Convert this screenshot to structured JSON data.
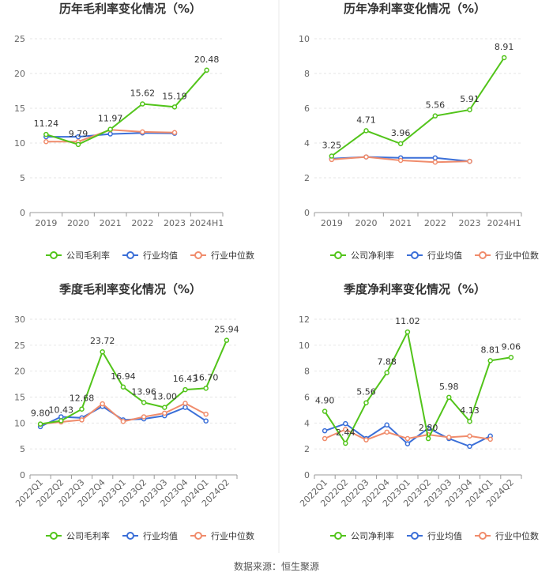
{
  "source_text": "数据来源：恒生聚源",
  "colors": {
    "company": "#52c41a",
    "avg": "#3b6fd8",
    "median": "#f08c6c",
    "axis": "#999999",
    "grid": "#e6e6e6",
    "text": "#666666",
    "title": "#333333",
    "divider": "#e8e8e8"
  },
  "chart_data": [
    {
      "type": "line",
      "title": "历年毛利率变化情况（%）",
      "categories": [
        "2019",
        "2020",
        "2021",
        "2022",
        "2023",
        "2024H1"
      ],
      "ylim": [
        0,
        25
      ],
      "yticks": [
        0,
        5,
        10,
        15,
        20,
        25
      ],
      "rotate_labels": false,
      "series": [
        {
          "name": "公司毛利率",
          "key": "company",
          "values": [
            11.24,
            9.79,
            11.97,
            15.62,
            15.19,
            20.48
          ],
          "labels": [
            "11.24",
            "9.79",
            "11.97",
            "15.62",
            "15.19",
            "20.48"
          ]
        },
        {
          "name": "行业均值",
          "key": "avg",
          "values": [
            10.9,
            10.9,
            11.3,
            11.45,
            11.4,
            null
          ]
        },
        {
          "name": "行业中位数",
          "key": "median",
          "values": [
            10.2,
            10.2,
            11.9,
            11.6,
            11.5,
            null
          ]
        }
      ]
    },
    {
      "type": "line",
      "title": "历年净利率变化情况（%）",
      "categories": [
        "2019",
        "2020",
        "2021",
        "2022",
        "2023",
        "2024H1"
      ],
      "ylim": [
        0,
        10
      ],
      "yticks": [
        0,
        2,
        4,
        6,
        8,
        10
      ],
      "rotate_labels": false,
      "series": [
        {
          "name": "公司净利率",
          "key": "company",
          "values": [
            3.25,
            4.71,
            3.96,
            5.56,
            5.91,
            8.91
          ],
          "labels": [
            "3.25",
            "4.71",
            "3.96",
            "5.56",
            "5.91",
            "8.91"
          ]
        },
        {
          "name": "行业均值",
          "key": "avg",
          "values": [
            3.1,
            3.2,
            3.15,
            3.15,
            2.95,
            null
          ]
        },
        {
          "name": "行业中位数",
          "key": "median",
          "values": [
            3.05,
            3.2,
            3.0,
            2.9,
            2.95,
            null
          ]
        }
      ]
    },
    {
      "type": "line",
      "title": "季度毛利率变化情况（%）",
      "categories": [
        "2022Q1",
        "2022Q2",
        "2022Q3",
        "2022Q4",
        "2023Q1",
        "2023Q2",
        "2023Q3",
        "2023Q4",
        "2024Q1",
        "2024Q2"
      ],
      "ylim": [
        0,
        30
      ],
      "yticks": [
        0,
        5,
        10,
        15,
        20,
        25,
        30
      ],
      "rotate_labels": true,
      "series": [
        {
          "name": "公司毛利率",
          "key": "company",
          "values": [
            9.8,
            10.43,
            12.68,
            23.72,
            16.94,
            13.96,
            13.0,
            16.43,
            16.7,
            25.94
          ],
          "labels": [
            "9.80",
            "10.43",
            "12.68",
            "23.72",
            "16.94",
            "13.96",
            "13.00",
            "16.43",
            "16.70",
            "25.94"
          ]
        },
        {
          "name": "行业均值",
          "key": "avg",
          "values": [
            9.3,
            11.2,
            11.0,
            13.2,
            10.6,
            10.8,
            11.4,
            13.0,
            10.4,
            null
          ]
        },
        {
          "name": "行业中位数",
          "key": "median",
          "values": [
            9.8,
            10.2,
            10.6,
            13.7,
            10.3,
            11.2,
            11.9,
            13.8,
            11.7,
            null
          ]
        }
      ]
    },
    {
      "type": "line",
      "title": "季度净利率变化情况（%）",
      "categories": [
        "2022Q1",
        "2022Q2",
        "2022Q3",
        "2022Q4",
        "2023Q1",
        "2023Q2",
        "2023Q3",
        "2023Q4",
        "2024Q1",
        "2024Q2"
      ],
      "ylim": [
        0,
        12
      ],
      "yticks": [
        0,
        2,
        4,
        6,
        8,
        10,
        12
      ],
      "rotate_labels": true,
      "series": [
        {
          "name": "公司净利率",
          "key": "company",
          "values": [
            4.9,
            2.44,
            5.56,
            7.88,
            11.02,
            2.8,
            5.98,
            4.13,
            8.81,
            9.06
          ],
          "labels": [
            "4.90",
            "2.44",
            "5.56",
            "7.88",
            "11.02",
            "2.80",
            "5.98",
            "4.13",
            "8.81",
            "9.06"
          ]
        },
        {
          "name": "行业均值",
          "key": "avg",
          "values": [
            3.4,
            3.95,
            2.8,
            3.85,
            2.4,
            3.6,
            2.8,
            2.2,
            3.0,
            null
          ]
        },
        {
          "name": "行业中位数",
          "key": "median",
          "values": [
            2.8,
            3.5,
            2.7,
            3.3,
            2.8,
            3.1,
            2.9,
            3.0,
            2.75,
            null
          ]
        }
      ]
    }
  ]
}
